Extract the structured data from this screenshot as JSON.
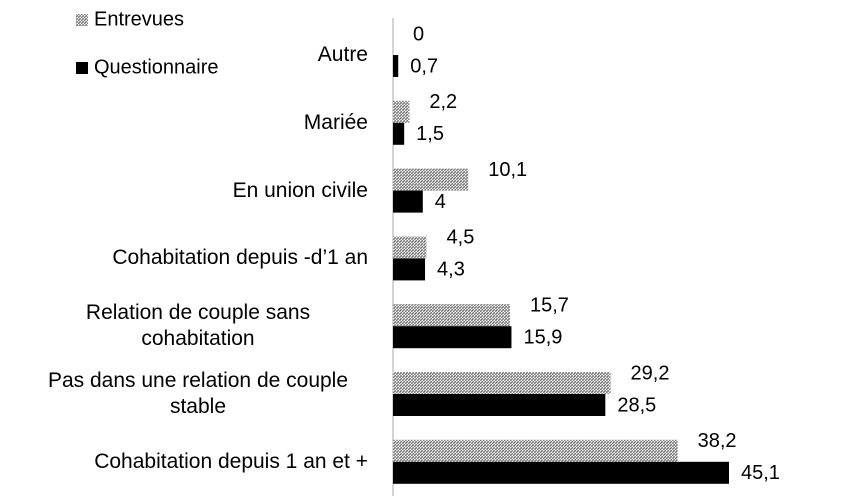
{
  "chart_data": {
    "type": "hbar",
    "categories": [
      "Autre",
      "Mariée",
      "En union civile",
      "Cohabitation depuis -d’1 an",
      "Relation de couple sans cohabitation",
      "Pas dans une relation de couple stable",
      "Cohabitation depuis 1 an et +"
    ],
    "series": [
      {
        "name": "Entrevues",
        "color": "#7f7f7f",
        "pattern": "hatch",
        "values": [
          0,
          2.2,
          10.1,
          4.5,
          15.7,
          29.2,
          38.2
        ],
        "value_labels": [
          "0",
          "2,2",
          "10,1",
          "4,5",
          "15,7",
          "29,2",
          "38,2"
        ]
      },
      {
        "name": "Questionnaire",
        "color": "#000000",
        "values": [
          0.7,
          1.5,
          4,
          4.3,
          15.9,
          28.5,
          45.1
        ],
        "value_labels": [
          "0,7",
          "1,5",
          "4",
          "4,3",
          "15,9",
          "28,5",
          "45,1"
        ]
      }
    ],
    "legend": "top-left"
  }
}
